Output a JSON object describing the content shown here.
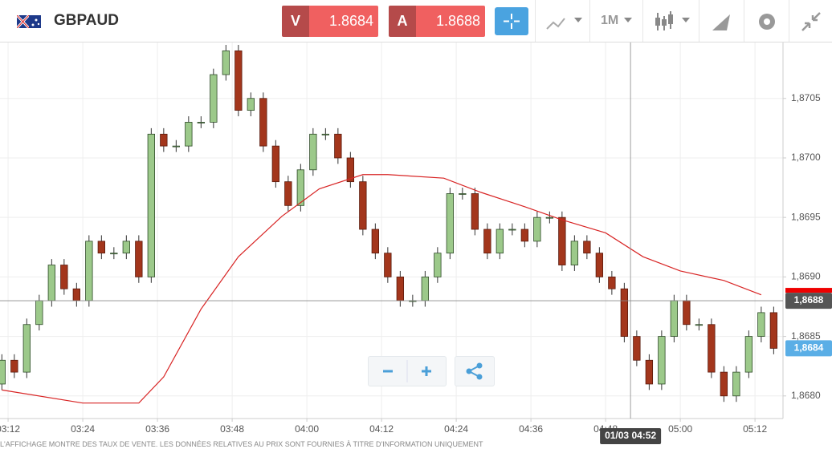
{
  "header": {
    "symbol": "GBPAUD",
    "sell_label": "V",
    "sell_price": 1.8684,
    "buy_label": "A",
    "buy_price": 1.8688,
    "timeframe": "1M"
  },
  "chart_data": {
    "type": "candlestick",
    "x": [
      191,
      193,
      195,
      197,
      199,
      201,
      203,
      205,
      207,
      209,
      211,
      213,
      215,
      217,
      219,
      221,
      223,
      225,
      227,
      229,
      231,
      233,
      235,
      237,
      239,
      241,
      243,
      245,
      247,
      249,
      251,
      253,
      255,
      257,
      259,
      261,
      263,
      265,
      267,
      269,
      271,
      273,
      275,
      277,
      279,
      281,
      283,
      285,
      287,
      289,
      291,
      293,
      295,
      297,
      299,
      301,
      303,
      305,
      307,
      309,
      311,
      313,
      315
    ],
    "open": [
      1.8681,
      1.8683,
      1.8682,
      1.8686,
      1.8688,
      1.8691,
      1.8689,
      1.8688,
      1.8693,
      1.8692,
      1.8692,
      1.8693,
      1.869,
      1.8702,
      1.8701,
      1.8701,
      1.8703,
      1.8703,
      1.8707,
      1.8709,
      1.8704,
      1.8705,
      1.8701,
      1.8698,
      1.8696,
      1.8699,
      1.8702,
      1.8702,
      1.87,
      1.8698,
      1.8694,
      1.8692,
      1.869,
      1.8688,
      1.8688,
      1.869,
      1.8692,
      1.8697,
      1.8697,
      1.8694,
      1.8692,
      1.8694,
      1.8694,
      1.8693,
      1.8695,
      1.8695,
      1.8691,
      1.8693,
      1.8692,
      1.869,
      1.8689,
      1.8685,
      1.8683,
      1.8681,
      1.8685,
      1.8688,
      1.8686,
      1.8686,
      1.8682,
      1.868,
      1.8682,
      1.8685,
      1.8687
    ],
    "high": [
      1.86835,
      1.86835,
      1.86865,
      1.86885,
      1.86915,
      1.86915,
      1.86895,
      1.86935,
      1.86935,
      1.86925,
      1.86935,
      1.86935,
      1.87025,
      1.87025,
      1.87015,
      1.87035,
      1.87035,
      1.87075,
      1.87095,
      1.87095,
      1.87055,
      1.87055,
      1.87015,
      1.86985,
      1.86995,
      1.87025,
      1.87025,
      1.87025,
      1.87005,
      1.86985,
      1.86945,
      1.86925,
      1.86905,
      1.86885,
      1.86905,
      1.86925,
      1.86975,
      1.86975,
      1.86975,
      1.86945,
      1.86945,
      1.86945,
      1.86945,
      1.86955,
      1.86955,
      1.86955,
      1.86935,
      1.86935,
      1.86925,
      1.86905,
      1.86895,
      1.86855,
      1.86835,
      1.86855,
      1.86885,
      1.86885,
      1.86865,
      1.86865,
      1.86825,
      1.86825,
      1.86855,
      1.86875,
      1.86875
    ],
    "low": [
      1.86805,
      1.86815,
      1.86815,
      1.86855,
      1.86875,
      1.86885,
      1.86875,
      1.86875,
      1.86915,
      1.86915,
      1.86915,
      1.86895,
      1.86895,
      1.87005,
      1.87005,
      1.87005,
      1.87025,
      1.87025,
      1.87065,
      1.87035,
      1.87035,
      1.87005,
      1.86975,
      1.86955,
      1.86955,
      1.86985,
      1.87015,
      1.86995,
      1.86975,
      1.86935,
      1.86915,
      1.86895,
      1.86875,
      1.86875,
      1.86875,
      1.86895,
      1.86915,
      1.86965,
      1.86935,
      1.86915,
      1.86915,
      1.86935,
      1.86925,
      1.86925,
      1.86945,
      1.86905,
      1.86905,
      1.86915,
      1.86895,
      1.86885,
      1.86845,
      1.86825,
      1.86805,
      1.86805,
      1.86845,
      1.86855,
      1.86855,
      1.86815,
      1.86795,
      1.86795,
      1.86815,
      1.86845,
      1.86835
    ],
    "close": [
      1.8683,
      1.8682,
      1.8686,
      1.8688,
      1.8691,
      1.8689,
      1.8688,
      1.8693,
      1.8692,
      1.8692,
      1.8693,
      1.869,
      1.8702,
      1.8701,
      1.8701,
      1.8703,
      1.8703,
      1.8707,
      1.8709,
      1.8704,
      1.8705,
      1.8701,
      1.8698,
      1.8696,
      1.8699,
      1.8702,
      1.8702,
      1.87,
      1.8698,
      1.8694,
      1.8692,
      1.869,
      1.8688,
      1.8688,
      1.869,
      1.8692,
      1.8697,
      1.8697,
      1.8694,
      1.8692,
      1.8694,
      1.8694,
      1.8693,
      1.8695,
      1.8695,
      1.8691,
      1.8693,
      1.8692,
      1.869,
      1.8689,
      1.8685,
      1.8683,
      1.8681,
      1.8685,
      1.8688,
      1.8686,
      1.8686,
      1.8682,
      1.868,
      1.8682,
      1.8685,
      1.8687,
      1.8684
    ],
    "up_color": "#9cc98a",
    "down_color": "#a3361c",
    "lines": [
      {
        "color": "#d82424",
        "x": [
          191,
          204,
          213,
          217,
          223,
          229,
          236,
          242,
          249,
          253,
          262,
          268,
          275,
          281,
          288,
          294,
          300,
          307,
          313
        ],
        "values": [
          1.86805,
          1.86794,
          1.86794,
          1.86816,
          1.86873,
          1.86917,
          1.86951,
          1.86974,
          1.86986,
          1.86986,
          1.86983,
          1.86971,
          1.86959,
          1.86948,
          1.86937,
          1.86917,
          1.86905,
          1.86897,
          1.86885
        ]
      }
    ],
    "xlim": [
      190.7,
      316.5
    ],
    "ylim": [
      1.86781,
      1.87097
    ],
    "xticks": [
      {
        "value": 192,
        "label": "03:12"
      },
      {
        "value": 204,
        "label": "03:24"
      },
      {
        "value": 216,
        "label": "03:36"
      },
      {
        "value": 228,
        "label": "03:48"
      },
      {
        "value": 240,
        "label": "04:00"
      },
      {
        "value": 252,
        "label": "04:12"
      },
      {
        "value": 264,
        "label": "04:24"
      },
      {
        "value": 276,
        "label": "04:36"
      },
      {
        "value": 288,
        "label": "04:48"
      },
      {
        "value": 300,
        "label": "05:00"
      },
      {
        "value": 312,
        "label": "05:12"
      }
    ],
    "yticks": [
      {
        "value": 1.868,
        "label": "1,8680"
      },
      {
        "value": 1.8685,
        "label": "1,8685"
      },
      {
        "value": 1.869,
        "label": "1,8690"
      },
      {
        "value": 1.8695,
        "label": "1,8695"
      },
      {
        "value": 1.87,
        "label": "1,8700"
      },
      {
        "value": 1.8705,
        "label": "1,8705"
      }
    ],
    "grid": true,
    "crosshair": {
      "price": {
        "value": 1.8688,
        "label": "1,8688"
      },
      "time": {
        "value": 292,
        "label": "01/03 04:52"
      }
    },
    "last_price": {
      "value": 1.8684,
      "label": "1,8684"
    }
  },
  "footer": {
    "disclaimer": "L'AFFICHAGE MONTRE DES TAUX DE VENTE. LES DONNÉES RELATIVES AU PRIX SONT FOURNIES À TITRE D'INFORMATION UNIQUEMENT"
  }
}
